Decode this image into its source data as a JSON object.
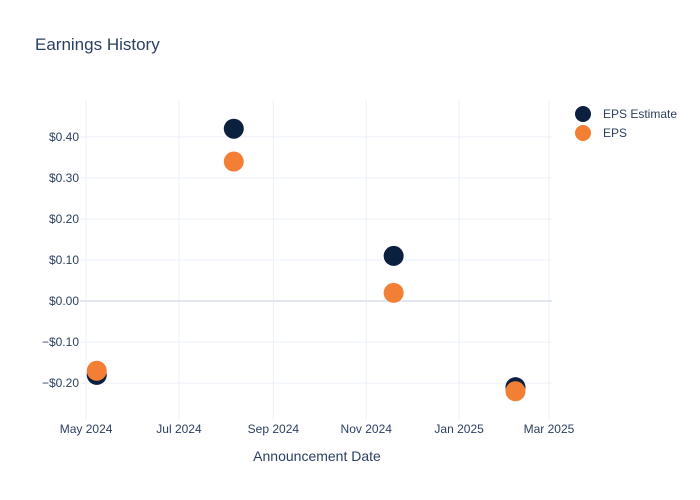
{
  "chart_data": {
    "type": "scatter",
    "title": "Earnings History",
    "xlabel": "Announcement Date",
    "ylabel": "",
    "x_tick_labels": [
      "May 2024",
      "Jul 2024",
      "Sep 2024",
      "Nov 2024",
      "Jan 2025",
      "Mar 2025"
    ],
    "x_ticks": [
      "2024-05-01",
      "2024-07-01",
      "2024-09-01",
      "2024-11-01",
      "2025-01-01",
      "2025-03-01"
    ],
    "xlim": [
      "2024-04-27",
      "2025-03-03"
    ],
    "y_tick_labels": [
      "−$0.20",
      "−$0.10",
      "$0.00",
      "$0.10",
      "$0.20",
      "$0.30",
      "$0.40"
    ],
    "y_ticks": [
      -0.2,
      -0.1,
      0.0,
      0.1,
      0.2,
      0.3,
      0.4
    ],
    "ylim": [
      -0.29,
      0.49
    ],
    "grid": true,
    "legend_position": "top-right",
    "series": [
      {
        "name": "EPS Estimate",
        "color": "#0b1f3f",
        "points": [
          {
            "x": "2024-05-08",
            "y": -0.18
          },
          {
            "x": "2024-08-06",
            "y": 0.42
          },
          {
            "x": "2024-11-19",
            "y": 0.11
          },
          {
            "x": "2025-02-07",
            "y": -0.21
          }
        ]
      },
      {
        "name": "EPS",
        "color": "#f37f35",
        "points": [
          {
            "x": "2024-05-08",
            "y": -0.17
          },
          {
            "x": "2024-08-06",
            "y": 0.34
          },
          {
            "x": "2024-11-19",
            "y": 0.02
          },
          {
            "x": "2025-02-07",
            "y": -0.22
          }
        ]
      }
    ]
  }
}
